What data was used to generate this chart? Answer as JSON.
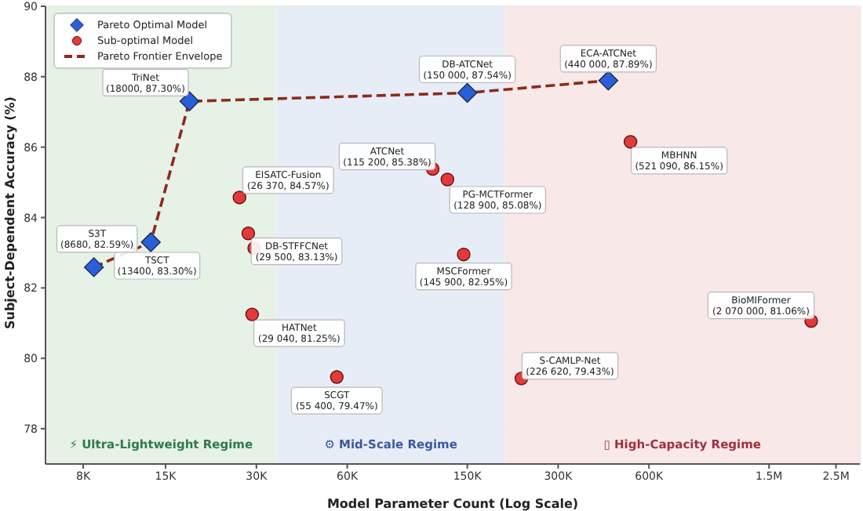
{
  "chart_data": {
    "type": "scatter",
    "xlabel": "Model Parameter Count (Log Scale)",
    "ylabel": "Subject-Dependent Accuracy (%)",
    "log": "x",
    "grid": true,
    "legend": "top left",
    "xlim": [
      6000,
      3000000
    ],
    "xticks": [
      {
        "value": 8000,
        "label": "8K"
      },
      {
        "value": 15000,
        "label": "15K"
      },
      {
        "value": 30000,
        "label": "30K"
      },
      {
        "value": 60000,
        "label": "60K"
      },
      {
        "value": 150000,
        "label": "150K"
      },
      {
        "value": 300000,
        "label": "300K"
      },
      {
        "value": 600000,
        "label": "600K"
      },
      {
        "value": 1500000,
        "label": "1.5M"
      },
      {
        "value": 2500000,
        "label": "2.5M"
      }
    ],
    "ylim": [
      77,
      90
    ],
    "yticks": [
      78,
      80,
      82,
      84,
      86,
      88,
      90
    ],
    "bands": [
      {
        "axis": "x",
        "from": 6000,
        "to": 35000,
        "label": "⚡ Ultra-Lightweight Regime",
        "color": "#e6f2e6"
      },
      {
        "axis": "x",
        "from": 35000,
        "to": 200000,
        "label": "⚙ Mid-Scale Regime",
        "color": "#e7edf7"
      },
      {
        "axis": "x",
        "from": 200000,
        "to": 3000000,
        "label": "▯ High-Capacity Regime",
        "color": "#f9e8e8"
      }
    ],
    "series": [
      {
        "name": "Pareto Optimal Model",
        "marker": "diamond",
        "color": "#2a5fd6",
        "x": [
          8680,
          13400,
          18000,
          150000,
          440000
        ],
        "values": [
          82.59,
          83.3,
          87.3,
          87.54,
          87.89
        ],
        "value_labels": [
          "S3T\n(8680, 82.59%)",
          "TSCT\n(13400, 83.30%)",
          "TriNet\n(18000, 87.30%)",
          "DB-ATCNet\n(150 000, 87.54%)",
          "ECA-ATCNet\n(440 000, 87.89%)"
        ]
      },
      {
        "name": "Sub-optimal Model",
        "marker": "circle",
        "color": "#e23a3a",
        "x": [
          26370,
          28200,
          29500,
          29040,
          55400,
          115200,
          128900,
          145900,
          226620,
          521090,
          2070000
        ],
        "values": [
          84.57,
          83.55,
          83.13,
          81.25,
          79.47,
          85.38,
          85.08,
          82.95,
          79.43,
          86.15,
          81.06
        ],
        "value_labels": [
          "EISATC-Fusion\n(26 370, 84.57%)",
          null,
          "DB-STFFCNet\n(29 500, 83.13%)",
          "HATNet\n(29 040, 81.25%)",
          "SCGT\n(55 400, 79.47%)",
          "ATCNet\n(115 200, 85.38%)",
          "PG-MCTFormer\n(128 900, 85.08%)",
          "MSCFormer\n(145 900, 82.95%)",
          "S-CAMLP-Net\n(226 620, 79.43%)",
          "MBHNN\n(521 090, 86.15%)",
          "BioMIFormer\n(2 070 000, 81.06%)"
        ]
      },
      {
        "name": "Pareto Frontier Envelope",
        "type": "line",
        "marker": "none",
        "line_style": "dashed",
        "color": "#8e2a1c",
        "x": [
          8680,
          13400,
          18000,
          150000,
          440000
        ],
        "values": [
          82.59,
          83.3,
          87.3,
          87.54,
          87.89
        ]
      }
    ]
  }
}
